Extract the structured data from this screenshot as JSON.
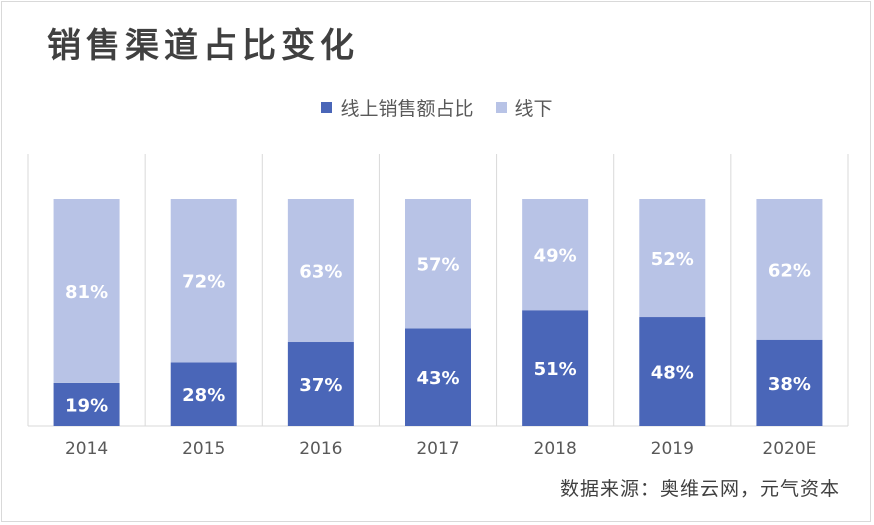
{
  "title": "销售渠道占比变化",
  "source": "数据来源：奥维云网，元气资本",
  "colors": {
    "online": "#4a66b8",
    "offline": "#b8c3e6",
    "grid": "#d9d9d9",
    "label": "#ffffff"
  },
  "chart_data": {
    "type": "bar",
    "stacked": true,
    "percent_stacked": true,
    "categories": [
      "2014",
      "2015",
      "2016",
      "2017",
      "2018",
      "2019",
      "2020E"
    ],
    "series": [
      {
        "name": "线上销售额占比",
        "values": [
          19,
          28,
          37,
          43,
          51,
          48,
          38
        ],
        "labels": [
          "19%",
          "28%",
          "37%",
          "43%",
          "51%",
          "48%",
          "38%"
        ]
      },
      {
        "name": "线下",
        "values": [
          81,
          72,
          63,
          57,
          49,
          52,
          62
        ],
        "labels": [
          "81%",
          "72%",
          "63%",
          "57%",
          "49%",
          "52%",
          "62%"
        ]
      }
    ],
    "ylim": [
      0,
      100
    ],
    "legend_position": "top",
    "grid": "vertical separators"
  }
}
